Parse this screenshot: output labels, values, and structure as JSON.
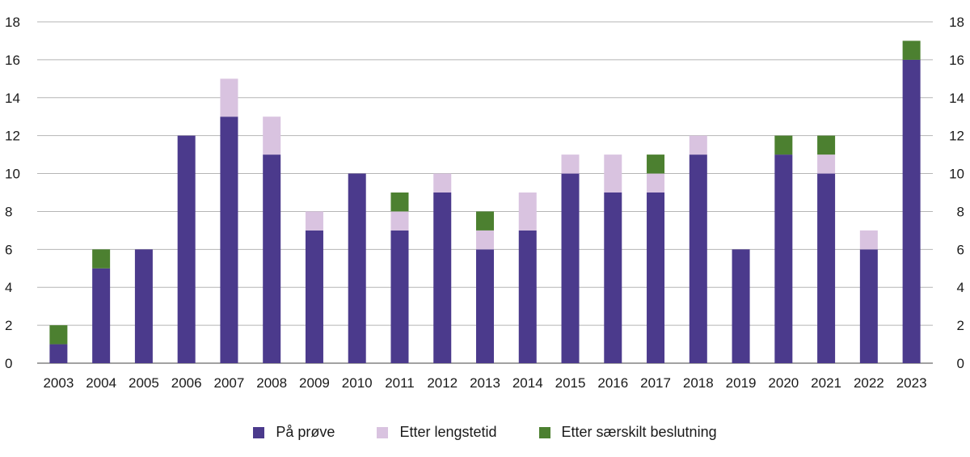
{
  "chart_data": {
    "type": "bar",
    "stacked": true,
    "categories": [
      "2003",
      "2004",
      "2005",
      "2006",
      "2007",
      "2008",
      "2009",
      "2010",
      "2011",
      "2012",
      "2013",
      "2014",
      "2015",
      "2016",
      "2017",
      "2018",
      "2019",
      "2020",
      "2021",
      "2022",
      "2023"
    ],
    "series": [
      {
        "name": "På prøve",
        "color": "#4b3a8c",
        "values": [
          1,
          5,
          6,
          12,
          13,
          11,
          7,
          10,
          7,
          9,
          6,
          7,
          10,
          9,
          9,
          11,
          6,
          11,
          10,
          6,
          16
        ]
      },
      {
        "name": "Etter lengstetid",
        "color": "#d9c3e0",
        "values": [
          0,
          0,
          0,
          0,
          2,
          2,
          1,
          0,
          1,
          1,
          1,
          2,
          1,
          2,
          1,
          1,
          0,
          0,
          1,
          1,
          0
        ]
      },
      {
        "name": "Etter særskilt beslutning",
        "color": "#4c8030",
        "values": [
          1,
          1,
          0,
          0,
          0,
          0,
          0,
          0,
          1,
          0,
          1,
          0,
          0,
          0,
          1,
          0,
          0,
          1,
          1,
          0,
          1
        ]
      }
    ],
    "ylim": [
      0,
      18
    ],
    "yticks": [
      0,
      2,
      4,
      6,
      8,
      10,
      12,
      14,
      16,
      18
    ],
    "y_axis_labels_both_sides": true,
    "grid": true,
    "legend_position": "bottom"
  }
}
